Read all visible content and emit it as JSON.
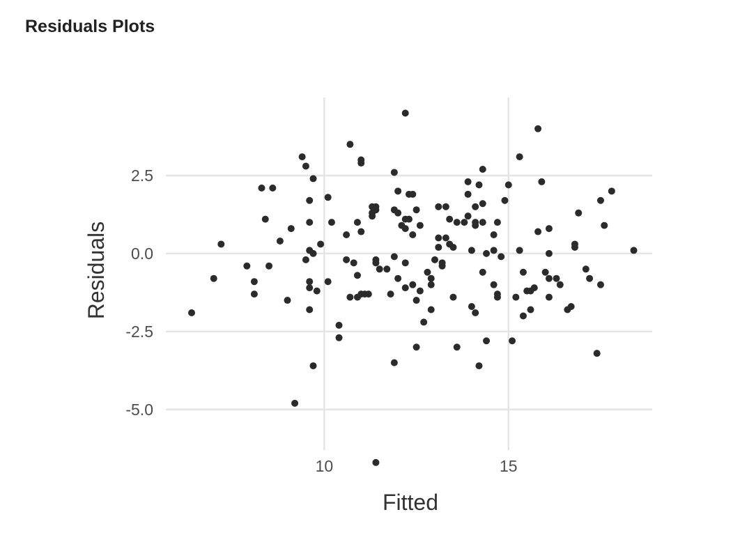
{
  "panel": {
    "title": "Residuals Plots"
  },
  "colors": {
    "point": "#2b2b2b",
    "grid": "#e5e5e5",
    "text": "#4d4d4d"
  },
  "chart_data": {
    "type": "scatter",
    "title": "",
    "xlabel": "Fitted",
    "ylabel": "Residuals",
    "xlim": [
      5.7,
      18.9
    ],
    "ylim": [
      -6.3,
      5.0
    ],
    "xticks": [
      10,
      15
    ],
    "xtick_labels": [
      "10",
      "15"
    ],
    "yticks": [
      2.5,
      0.0,
      -2.5,
      -5.0
    ],
    "ytick_labels": [
      "2.5",
      "0.0",
      "-2.5",
      "-5.0"
    ],
    "grid": true,
    "points": [
      [
        6.4,
        -1.9
      ],
      [
        7.0,
        -0.8
      ],
      [
        7.2,
        0.3
      ],
      [
        7.9,
        -0.4
      ],
      [
        8.1,
        -0.9
      ],
      [
        8.1,
        -1.3
      ],
      [
        8.3,
        2.1
      ],
      [
        8.4,
        1.1
      ],
      [
        8.5,
        -0.4
      ],
      [
        8.6,
        2.1
      ],
      [
        8.8,
        0.4
      ],
      [
        9.1,
        0.8
      ],
      [
        9.0,
        -1.5
      ],
      [
        9.2,
        -4.8
      ],
      [
        9.4,
        3.1
      ],
      [
        9.5,
        2.8
      ],
      [
        9.5,
        -0.2
      ],
      [
        9.6,
        1.7
      ],
      [
        9.6,
        1.0
      ],
      [
        9.6,
        0.1
      ],
      [
        9.6,
        -0.9
      ],
      [
        9.6,
        -1.1
      ],
      [
        9.6,
        -1.8
      ],
      [
        9.7,
        2.4
      ],
      [
        9.7,
        0.0
      ],
      [
        9.7,
        -3.6
      ],
      [
        9.8,
        -1.2
      ],
      [
        9.9,
        0.3
      ],
      [
        10.1,
        1.8
      ],
      [
        10.1,
        -0.9
      ],
      [
        10.2,
        1.0
      ],
      [
        10.4,
        -2.7
      ],
      [
        10.4,
        -2.3
      ],
      [
        10.6,
        0.6
      ],
      [
        10.6,
        -0.2
      ],
      [
        10.7,
        3.5
      ],
      [
        10.7,
        -1.4
      ],
      [
        10.8,
        -0.3
      ],
      [
        10.9,
        1.0
      ],
      [
        10.9,
        -0.7
      ],
      [
        10.9,
        -1.4
      ],
      [
        11.0,
        3.0
      ],
      [
        11.0,
        2.9
      ],
      [
        11.0,
        -1.3
      ],
      [
        11.0,
        0.7
      ],
      [
        11.1,
        -1.3
      ],
      [
        11.2,
        -1.3
      ],
      [
        11.3,
        1.5
      ],
      [
        11.3,
        1.3
      ],
      [
        11.3,
        1.2
      ],
      [
        11.4,
        1.4
      ],
      [
        11.4,
        1.5
      ],
      [
        11.4,
        -0.2
      ],
      [
        11.4,
        -0.3
      ],
      [
        11.5,
        -0.5
      ],
      [
        11.4,
        -6.7
      ],
      [
        11.7,
        -0.5
      ],
      [
        11.8,
        -1.3
      ],
      [
        11.9,
        2.6
      ],
      [
        11.9,
        1.4
      ],
      [
        11.9,
        -0.1
      ],
      [
        11.9,
        -3.5
      ],
      [
        12.0,
        2.0
      ],
      [
        12.0,
        1.3
      ],
      [
        12.0,
        -0.8
      ],
      [
        12.1,
        0.9
      ],
      [
        12.2,
        4.5
      ],
      [
        12.2,
        1.1
      ],
      [
        12.2,
        0.8
      ],
      [
        12.2,
        -0.3
      ],
      [
        12.2,
        -1.1
      ],
      [
        12.3,
        1.9
      ],
      [
        12.3,
        1.1
      ],
      [
        12.4,
        1.9
      ],
      [
        12.4,
        0.6
      ],
      [
        12.5,
        1.4
      ],
      [
        12.4,
        -1.0
      ],
      [
        12.5,
        -1.5
      ],
      [
        12.5,
        -3.0
      ],
      [
        12.6,
        0.9
      ],
      [
        12.6,
        -1.2
      ],
      [
        12.7,
        -2.2
      ],
      [
        12.8,
        -0.6
      ],
      [
        12.9,
        -0.8
      ],
      [
        12.9,
        -1.0
      ],
      [
        12.9,
        -1.8
      ],
      [
        13.0,
        -0.2
      ],
      [
        13.1,
        1.5
      ],
      [
        13.1,
        0.5
      ],
      [
        13.1,
        0.2
      ],
      [
        13.2,
        -0.4
      ],
      [
        13.2,
        -0.3
      ],
      [
        13.3,
        1.5
      ],
      [
        13.3,
        0.5
      ],
      [
        13.4,
        1.1
      ],
      [
        13.4,
        0.3
      ],
      [
        13.5,
        0.2
      ],
      [
        13.5,
        -1.4
      ],
      [
        13.6,
        1.0
      ],
      [
        13.6,
        -3.0
      ],
      [
        13.8,
        1.0
      ],
      [
        13.9,
        2.3
      ],
      [
        13.9,
        1.9
      ],
      [
        13.9,
        1.2
      ],
      [
        14.0,
        0.1
      ],
      [
        14.0,
        -1.7
      ],
      [
        14.1,
        1.5
      ],
      [
        14.1,
        1.0
      ],
      [
        14.1,
        0.9
      ],
      [
        14.1,
        -1.9
      ],
      [
        14.2,
        2.2
      ],
      [
        14.2,
        -3.6
      ],
      [
        14.3,
        2.7
      ],
      [
        14.3,
        1.6
      ],
      [
        14.3,
        1.0
      ],
      [
        14.3,
        -0.6
      ],
      [
        14.4,
        0.0
      ],
      [
        14.4,
        -2.8
      ],
      [
        14.6,
        0.6
      ],
      [
        14.6,
        0.1
      ],
      [
        14.6,
        -1.0
      ],
      [
        14.7,
        -1.3
      ],
      [
        14.7,
        -1.4
      ],
      [
        14.7,
        1.0
      ],
      [
        14.8,
        -0.1
      ],
      [
        14.9,
        1.7
      ],
      [
        15.0,
        2.2
      ],
      [
        15.1,
        -2.8
      ],
      [
        15.2,
        -1.4
      ],
      [
        15.3,
        3.1
      ],
      [
        15.3,
        0.1
      ],
      [
        15.4,
        -2.0
      ],
      [
        15.4,
        -0.6
      ],
      [
        15.5,
        -1.2
      ],
      [
        15.6,
        -1.8
      ],
      [
        15.6,
        -1.2
      ],
      [
        15.7,
        -1.1
      ],
      [
        15.8,
        4.0
      ],
      [
        15.8,
        0.7
      ],
      [
        15.9,
        2.3
      ],
      [
        16.0,
        -0.6
      ],
      [
        16.1,
        0.8
      ],
      [
        16.1,
        0.0
      ],
      [
        16.1,
        -1.4
      ],
      [
        16.1,
        -0.8
      ],
      [
        16.3,
        -0.8
      ],
      [
        16.4,
        -1.0
      ],
      [
        16.6,
        -1.8
      ],
      [
        16.7,
        -1.7
      ],
      [
        16.8,
        0.3
      ],
      [
        16.8,
        0.2
      ],
      [
        16.9,
        1.3
      ],
      [
        17.1,
        -0.5
      ],
      [
        17.2,
        -0.8
      ],
      [
        17.4,
        -3.2
      ],
      [
        17.5,
        1.7
      ],
      [
        17.5,
        -1.0
      ],
      [
        17.6,
        0.9
      ],
      [
        17.8,
        2.0
      ],
      [
        18.4,
        0.1
      ]
    ]
  }
}
